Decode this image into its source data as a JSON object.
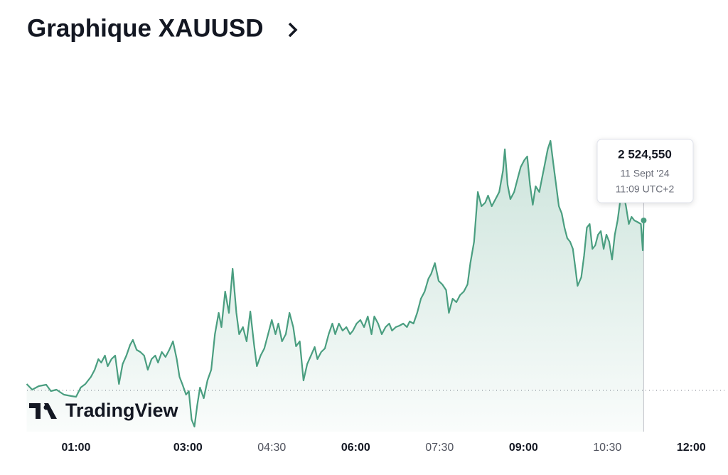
{
  "chart_data": {
    "type": "area",
    "title": "Graphique XAUUSD",
    "watermark": "TradingView",
    "color": "#4a9e80",
    "x": [
      7,
      13,
      20,
      28,
      33,
      39,
      47,
      55,
      60,
      65,
      70,
      76,
      80,
      84,
      87,
      91,
      94,
      98,
      102,
      106,
      110,
      114,
      118,
      121,
      125,
      129,
      133,
      137,
      141,
      145,
      148,
      152,
      156,
      160,
      164,
      168,
      171,
      174,
      178,
      181,
      184,
      187,
      190,
      193,
      197,
      201,
      205,
      209,
      213,
      216,
      220,
      224,
      228,
      232,
      235,
      239,
      243,
      247,
      251,
      254,
      258,
      262,
      266,
      270,
      274,
      277,
      281,
      285,
      289,
      293,
      296,
      300,
      304,
      308,
      312,
      316,
      319,
      323,
      327,
      331,
      335,
      338,
      342,
      346,
      350,
      354,
      357,
      361,
      365,
      369,
      373,
      377,
      380,
      384,
      388,
      392,
      396,
      399,
      403,
      407,
      411,
      415,
      418,
      422,
      426,
      430,
      434,
      438,
      441,
      445,
      449,
      453,
      457,
      460,
      464,
      468,
      472,
      476,
      480,
      483,
      487,
      491,
      495,
      499,
      502,
      506,
      510,
      514,
      518,
      520,
      523,
      526,
      530,
      534,
      537,
      541,
      544,
      547,
      550,
      553,
      557,
      560,
      563,
      566,
      569,
      572,
      575,
      578,
      581,
      584,
      587,
      590,
      593,
      596,
      598,
      602,
      605,
      608,
      611,
      614,
      617,
      620,
      623,
      626,
      629,
      632,
      635,
      638,
      641,
      644,
      647,
      650,
      653,
      656,
      659,
      662,
      666,
      668,
      669
    ],
    "values": [
      2515.35,
      2515.03,
      2515.23,
      2515.31,
      2514.95,
      2515.03,
      2514.75,
      2514.67,
      2514.63,
      2515.15,
      2515.35,
      2515.75,
      2516.15,
      2516.75,
      2516.55,
      2516.95,
      2516.35,
      2516.75,
      2516.95,
      2515.35,
      2516.47,
      2516.95,
      2517.55,
      2517.83,
      2517.27,
      2517.15,
      2516.95,
      2516.15,
      2516.75,
      2516.95,
      2516.55,
      2517.15,
      2516.87,
      2517.27,
      2517.75,
      2516.75,
      2515.75,
      2515.35,
      2514.75,
      2514.95,
      2513.35,
      2512.95,
      2514.15,
      2515.15,
      2514.55,
      2515.55,
      2516.15,
      2518.15,
      2519.35,
      2518.55,
      2520.55,
      2519.35,
      2521.83,
      2519.35,
      2518.15,
      2518.55,
      2517.75,
      2519.43,
      2517.55,
      2516.35,
      2516.95,
      2517.35,
      2518.15,
      2518.95,
      2518.15,
      2518.75,
      2517.75,
      2518.15,
      2519.35,
      2518.55,
      2517.47,
      2517.75,
      2515.55,
      2516.47,
      2516.95,
      2517.43,
      2516.75,
      2517.15,
      2517.35,
      2518.15,
      2518.75,
      2518.15,
      2518.75,
      2518.35,
      2518.55,
      2518.15,
      2518.35,
      2518.75,
      2518.95,
      2518.55,
      2519.15,
      2518.15,
      2519.15,
      2518.75,
      2518.15,
      2518.55,
      2518.75,
      2518.35,
      2518.55,
      2518.63,
      2518.75,
      2518.55,
      2518.87,
      2518.75,
      2519.35,
      2520.15,
      2520.55,
      2521.27,
      2521.55,
      2522.15,
      2521.15,
      2520.95,
      2520.63,
      2519.35,
      2520.15,
      2519.95,
      2520.35,
      2520.55,
      2520.95,
      2522.15,
      2523.35,
      2526.15,
      2525.35,
      2525.55,
      2525.95,
      2525.35,
      2525.75,
      2526.15,
      2527.35,
      2528.55,
      2526.55,
      2525.75,
      2526.15,
      2526.95,
      2527.55,
      2527.95,
      2528.15,
      2526.55,
      2525.43,
      2526.47,
      2526.15,
      2526.95,
      2527.75,
      2528.55,
      2529.03,
      2527.75,
      2526.55,
      2525.35,
      2524.95,
      2524.15,
      2523.55,
      2523.35,
      2522.95,
      2521.75,
      2520.87,
      2521.35,
      2522.55,
      2524.15,
      2524.35,
      2522.95,
      2523.15,
      2523.75,
      2523.95,
      2522.95,
      2523.75,
      2523.35,
      2522.35,
      2523.75,
      2524.55,
      2525.75,
      2526.15,
      2525.35,
      2524.35,
      2524.75,
      2524.55,
      2524.47,
      2524.35,
      2522.87,
      2524.55
    ],
    "baseline": 2514.99,
    "xlim": [
      7.4,
      757.9
    ],
    "ylim": [
      2512.67,
      2530.95
    ],
    "xticks": [
      {
        "value": 60,
        "label": "01:00",
        "bold": true
      },
      {
        "value": 180,
        "label": "03:00",
        "bold": true
      },
      {
        "value": 270,
        "label": "04:30"
      },
      {
        "value": 360,
        "label": "06:00",
        "bold": true
      },
      {
        "value": 450,
        "label": "07:30"
      },
      {
        "value": 540,
        "label": "09:00",
        "bold": true
      },
      {
        "value": 630,
        "label": "10:30"
      },
      {
        "value": 720,
        "label": "12:00",
        "bold": true
      }
    ],
    "tooltip": {
      "label": "2 524,550",
      "date": "11 Sept '24",
      "time": "11:09 UTC+2"
    }
  }
}
